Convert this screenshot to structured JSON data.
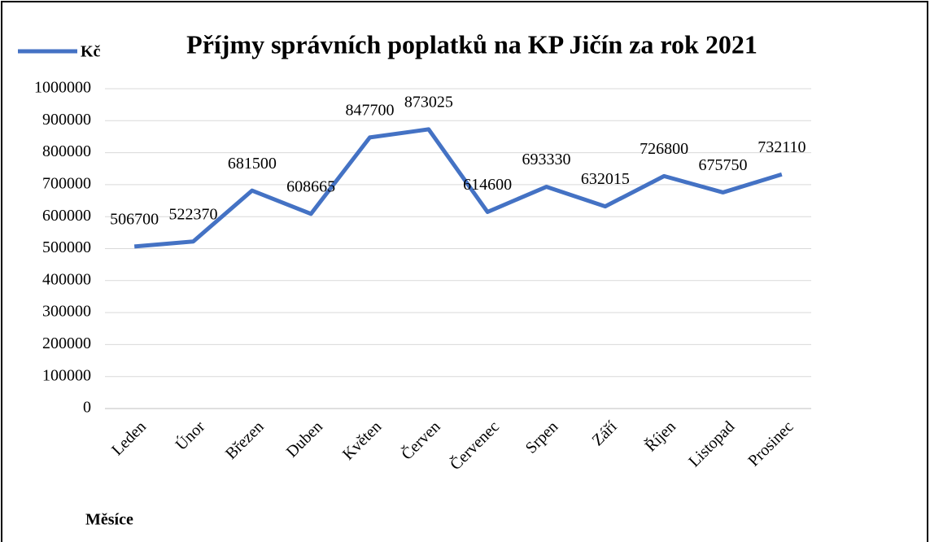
{
  "chart_data": {
    "type": "line",
    "title": "Příjmy správních poplatků na KP Jičín za rok 2021",
    "x_label": "Měsíce",
    "categories": [
      "Leden",
      "Únor",
      "Březen",
      "Duben",
      "Květen",
      "Červen",
      "Červenec",
      "Srpen",
      "Září",
      "Říjen",
      "Listopad",
      "Prosinec"
    ],
    "series": [
      {
        "name": "Kč",
        "color": "#4472c4",
        "values": [
          506700,
          522370,
          681500,
          608665,
          847700,
          873025,
          614600,
          693330,
          632015,
          726800,
          675750,
          732110
        ]
      }
    ],
    "ylim": [
      0,
      1000000
    ],
    "yticks": [
      0,
      100000,
      200000,
      300000,
      400000,
      500000,
      600000,
      700000,
      800000,
      900000,
      1000000
    ],
    "grid": true,
    "legend": "top-left",
    "data_labels": true
  }
}
